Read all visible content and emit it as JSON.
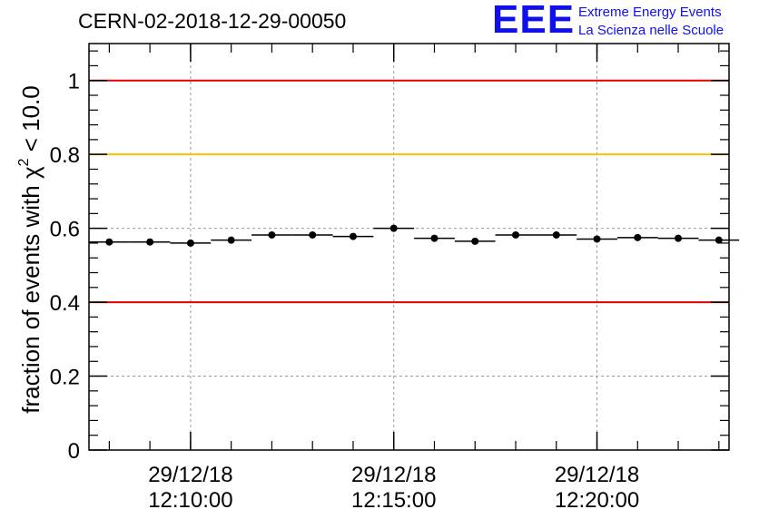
{
  "chart_data": {
    "type": "scatter",
    "title": "CERN-02-2018-12-29-00050",
    "ylabel": "fraction of events with χ² < 10.0",
    "ylabel_parts": {
      "prefix": "fraction of events with χ",
      "sup": "2",
      "suffix": " < 10.0"
    },
    "xlabel": "",
    "ylim": [
      0,
      1.1
    ],
    "xlim_minutes": [
      0,
      15.75
    ],
    "y_ticks": [
      0,
      0.2,
      0.4,
      0.6,
      0.8,
      1
    ],
    "y_tick_labels": [
      "0",
      "0.2",
      "0.4",
      "0.6",
      "0.8",
      "1"
    ],
    "x_ticks": [
      {
        "minute": 2.5,
        "date": "29/12/18",
        "time": "12:10:00"
      },
      {
        "minute": 7.5,
        "date": "29/12/18",
        "time": "12:15:00"
      },
      {
        "minute": 12.5,
        "date": "29/12/18",
        "time": "12:20:00"
      }
    ],
    "x_minor_tick_minutes": [
      0.5,
      1.5,
      2.5,
      3.5,
      4.5,
      5.5,
      6.5,
      7.5,
      8.5,
      9.5,
      10.5,
      11.5,
      12.5,
      13.5,
      14.5,
      15.5
    ],
    "reference_lines": [
      {
        "y": 1.0,
        "color": "#e00000"
      },
      {
        "y": 0.8,
        "color": "#ffc000"
      },
      {
        "y": 0.4,
        "color": "#e00000"
      }
    ],
    "bin_width_minutes": 1,
    "series": [
      {
        "name": "fraction",
        "x_minutes": [
          0.5,
          1.5,
          2.5,
          3.5,
          4.5,
          5.5,
          6.5,
          7.5,
          8.5,
          9.5,
          10.5,
          11.5,
          12.5,
          13.5,
          14.5,
          15.5
        ],
        "values": [
          0.563,
          0.563,
          0.56,
          0.568,
          0.582,
          0.582,
          0.578,
          0.6,
          0.573,
          0.565,
          0.582,
          0.582,
          0.571,
          0.575,
          0.573,
          0.568
        ]
      }
    ],
    "grid": true
  },
  "logo": {
    "mark": "EEE",
    "line1": "Extreme Energy Events",
    "line2": "La Scienza nelle Scuole"
  }
}
